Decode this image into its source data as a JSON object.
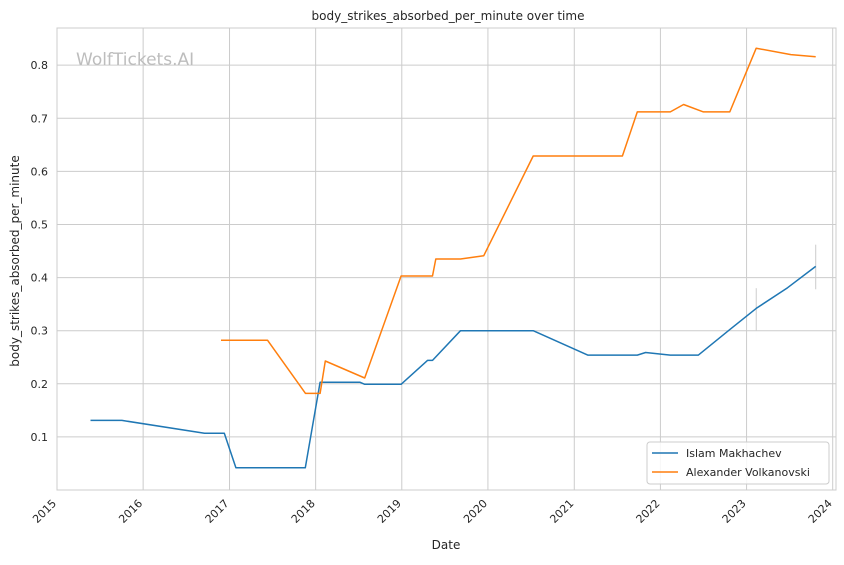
{
  "watermark": "WolfTickets.AI",
  "chart_data": {
    "type": "line",
    "title": "body_strikes_absorbed_per_minute over time",
    "xlabel": "Date",
    "ylabel": "body_strikes_absorbed_per_minute",
    "xlim": [
      "2015-01-01",
      "2024-01-15"
    ],
    "ylim": [
      0.0,
      0.87
    ],
    "x_ticks": [
      "2015-01-01",
      "2016-01-01",
      "2017-01-01",
      "2018-01-01",
      "2019-01-01",
      "2020-01-01",
      "2021-01-01",
      "2022-01-01",
      "2023-01-01",
      "2024-01-01"
    ],
    "x_tick_labels": [
      "2015",
      "2016",
      "2017",
      "2018",
      "2019",
      "2020",
      "2021",
      "2022",
      "2023",
      "2024"
    ],
    "y_ticks": [
      0.1,
      0.2,
      0.3,
      0.4,
      0.5,
      0.6,
      0.7,
      0.8
    ],
    "y_tick_labels": [
      "0.1",
      "0.2",
      "0.3",
      "0.4",
      "0.5",
      "0.6",
      "0.7",
      "0.8"
    ],
    "grid": true,
    "legend_position": "bottom-right",
    "series": [
      {
        "name": "Islam Makhachev",
        "color": "#1f77b4",
        "points": [
          [
            "2015-05-23",
            0.131
          ],
          [
            "2015-10-03",
            0.131
          ],
          [
            "2016-09-17",
            0.107
          ],
          [
            "2016-12-10",
            0.107
          ],
          [
            "2017-01-28",
            0.042
          ],
          [
            "2017-11-18",
            0.042
          ],
          [
            "2018-01-20",
            0.203
          ],
          [
            "2018-07-07",
            0.203
          ],
          [
            "2018-07-28",
            0.199
          ],
          [
            "2018-12-29",
            0.199
          ],
          [
            "2019-04-20",
            0.244
          ],
          [
            "2019-05-11",
            0.244
          ],
          [
            "2019-09-07",
            0.3
          ],
          [
            "2020-07-11",
            0.3
          ],
          [
            "2021-02-27",
            0.254
          ],
          [
            "2021-09-25",
            0.254
          ],
          [
            "2021-10-30",
            0.259
          ],
          [
            "2022-02-12",
            0.254
          ],
          [
            "2022-06-11",
            0.254
          ],
          [
            "2022-10-22",
            0.302
          ],
          [
            "2023-02-11",
            0.342
          ],
          [
            "2023-06-24",
            0.381
          ],
          [
            "2023-10-21",
            0.421
          ]
        ],
        "error_bars": [
          {
            "x": "2023-02-11",
            "low": 0.3,
            "high": 0.38
          },
          {
            "x": "2023-10-21",
            "low": 0.378,
            "high": 0.462
          }
        ]
      },
      {
        "name": "Alexander Volkanovski",
        "color": "#ff7f0e",
        "points": [
          [
            "2016-11-26",
            0.282
          ],
          [
            "2017-06-11",
            0.282
          ],
          [
            "2017-11-19",
            0.182
          ],
          [
            "2018-01-20",
            0.182
          ],
          [
            "2018-02-11",
            0.243
          ],
          [
            "2018-07-28",
            0.211
          ],
          [
            "2018-12-29",
            0.403
          ],
          [
            "2019-05-11",
            0.403
          ],
          [
            "2019-05-25",
            0.435
          ],
          [
            "2019-09-07",
            0.435
          ],
          [
            "2019-12-14",
            0.441
          ],
          [
            "2020-07-11",
            0.629
          ],
          [
            "2021-07-24",
            0.629
          ],
          [
            "2021-09-25",
            0.712
          ],
          [
            "2022-02-12",
            0.712
          ],
          [
            "2022-04-09",
            0.726
          ],
          [
            "2022-07-02",
            0.712
          ],
          [
            "2022-10-22",
            0.712
          ],
          [
            "2023-02-11",
            0.832
          ],
          [
            "2023-07-08",
            0.82
          ],
          [
            "2023-10-21",
            0.816
          ]
        ]
      }
    ]
  }
}
